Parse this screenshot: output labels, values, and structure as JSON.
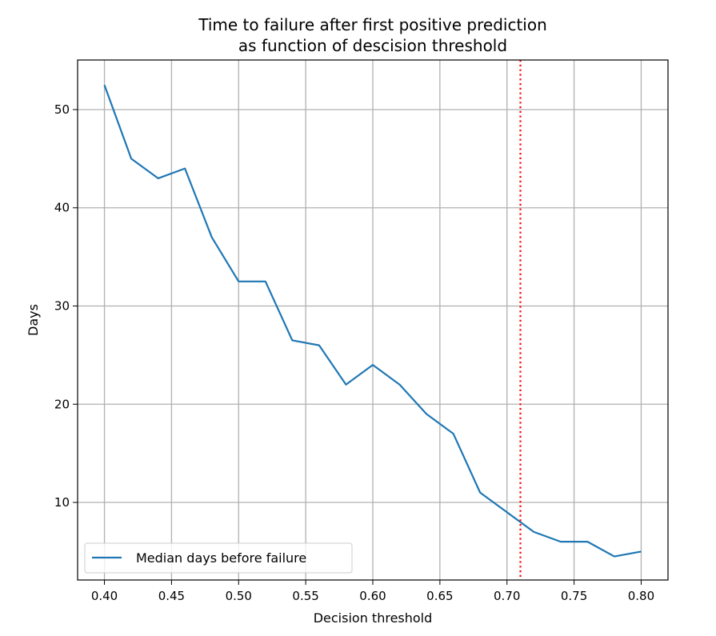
{
  "chart_data": {
    "type": "line",
    "title": [
      "Time to failure after first positive prediction",
      "as function of descision threshold"
    ],
    "xlabel": "Decision threshold",
    "ylabel": "Days",
    "xlim": [
      0.38,
      0.82
    ],
    "ylim": [
      2.1,
      55.05
    ],
    "xticks": [
      0.4,
      0.45,
      0.5,
      0.55,
      0.6,
      0.65,
      0.7,
      0.75,
      0.8
    ],
    "xtick_labels": [
      "0.40",
      "0.45",
      "0.50",
      "0.55",
      "0.60",
      "0.65",
      "0.70",
      "0.75",
      "0.80"
    ],
    "yticks": [
      10,
      20,
      30,
      40,
      50
    ],
    "ytick_labels": [
      "10",
      "20",
      "30",
      "40",
      "50"
    ],
    "grid": true,
    "legend_placement": "lower-left",
    "series": [
      {
        "name": "Median days before failure",
        "color": "#1f77b4",
        "x": [
          0.4,
          0.42,
          0.44,
          0.46,
          0.48,
          0.5,
          0.52,
          0.54,
          0.56,
          0.58,
          0.6,
          0.62,
          0.64,
          0.66,
          0.68,
          0.7,
          0.72,
          0.74,
          0.76,
          0.78,
          0.8
        ],
        "y": [
          52.5,
          45,
          43,
          44,
          37,
          32.5,
          32.5,
          26.5,
          26,
          22,
          24,
          22,
          19,
          17,
          11,
          9,
          7,
          6,
          6,
          4.5,
          5
        ]
      }
    ],
    "vline": {
      "x": 0.71,
      "color": "#ff0000",
      "style": "dotted"
    }
  }
}
